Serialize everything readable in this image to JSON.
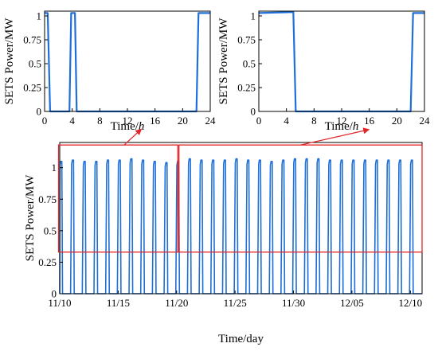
{
  "chart_data": [
    {
      "type": "line",
      "name": "inset-left",
      "xlabel_parts": [
        "Time/",
        "h"
      ],
      "ylabel": "SETS Power/MW",
      "xlim": [
        0,
        24
      ],
      "ylim": [
        0,
        1.05
      ],
      "xticks": [
        "0",
        "4",
        "8",
        "12",
        "16",
        "20",
        "24"
      ],
      "yticks": [
        "0",
        "0.25",
        "0.5",
        "0.75",
        "1"
      ],
      "series": [
        {
          "color": "#1f6fd8",
          "x": [
            0,
            0.45,
            0.8,
            3.6,
            3.85,
            4.4,
            4.65,
            22.0,
            22.3,
            24
          ],
          "y": [
            1.03,
            1.03,
            0,
            0,
            1.03,
            1.03,
            0,
            0,
            1.03,
            1.03
          ]
        }
      ]
    },
    {
      "type": "line",
      "name": "inset-right",
      "xlabel_parts": [
        "Time/",
        "h"
      ],
      "ylabel": "SETS Power/MW",
      "xlim": [
        0,
        24
      ],
      "ylim": [
        0,
        1.05
      ],
      "xticks": [
        "0",
        "4",
        "8",
        "12",
        "16",
        "20",
        "24"
      ],
      "yticks": [
        "0",
        "0.25",
        "0.5",
        "0.75",
        "1"
      ],
      "series": [
        {
          "color": "#1f6fd8",
          "x": [
            0,
            5.0,
            5.35,
            22.0,
            22.35,
            24
          ],
          "y": [
            1.03,
            1.04,
            0,
            0,
            1.03,
            1.03
          ]
        }
      ]
    },
    {
      "type": "line",
      "name": "main",
      "xlabel": "Time/day",
      "ylabel": "SETS Power/MW",
      "xlim": [
        0,
        31
      ],
      "ylim": [
        0,
        1.2
      ],
      "xticks": [
        {
          "label": "11/10",
          "x": 0
        },
        {
          "label": "11/15",
          "x": 5
        },
        {
          "label": "11/20",
          "x": 10
        },
        {
          "label": "11/25",
          "x": 15
        },
        {
          "label": "11/30",
          "x": 20
        },
        {
          "label": "12/05",
          "x": 25
        },
        {
          "label": "12/10",
          "x": 30
        }
      ],
      "yticks": [
        "0",
        "0.25",
        "0.5",
        "0.75",
        "1"
      ],
      "series": [
        {
          "color": "#1f6fd8",
          "days": 31,
          "peaks": [
            1.05,
            1.06,
            1.05,
            1.05,
            1.06,
            1.06,
            1.07,
            1.06,
            1.05,
            1.04,
            1.05,
            1.07,
            1.06,
            1.06,
            1.06,
            1.07,
            1.06,
            1.06,
            1.05,
            1.06,
            1.07,
            1.07,
            1.07,
            1.06,
            1.06,
            1.06,
            1.06,
            1.06,
            1.06,
            1.06,
            1.06
          ]
        }
      ],
      "highlight_boxes": [
        {
          "x": [
            -0.1,
            10.1
          ],
          "y": [
            0.33,
            1.18
          ],
          "color": "#e0262a",
          "links_to": "inset-left"
        },
        {
          "x": [
            10.2,
            31.0
          ],
          "y": [
            0.33,
            1.18
          ],
          "color": "#e0262a",
          "links_to": "inset-right"
        }
      ]
    }
  ]
}
